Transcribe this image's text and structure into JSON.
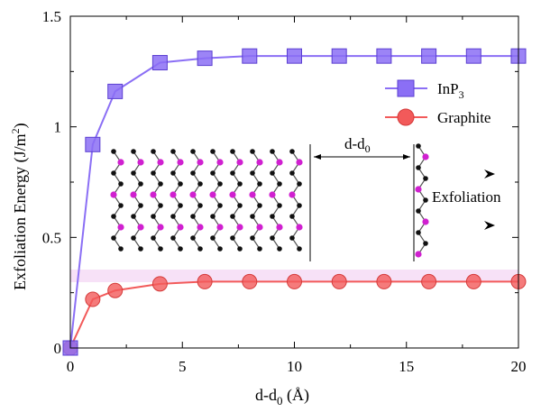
{
  "chart_data": {
    "type": "line",
    "xlabel": "d-d",
    "xlabel_sub": "0",
    "xlabel_unit": " (Å)",
    "ylabel": "Exfoliation Energy (J/m",
    "ylabel_sup": "2",
    "ylabel_end": ")",
    "xlim": [
      0,
      20
    ],
    "ylim": [
      0,
      1.5
    ],
    "x_ticks": [
      0,
      5,
      10,
      15,
      20
    ],
    "x_tick_labels": [
      "0",
      "5",
      "10",
      "15",
      "20"
    ],
    "y_ticks": [
      0,
      0.5,
      1,
      1.5
    ],
    "y_tick_labels": [
      "0",
      "0.5",
      "1",
      "1.5"
    ],
    "grid": false,
    "legend_position": "upper-right",
    "series": [
      {
        "name": "InP",
        "name_sub": "3",
        "marker": "square",
        "color": "#8b6ff5",
        "x": [
          0,
          1,
          2,
          4,
          6,
          8,
          10,
          12,
          14,
          16,
          18,
          20
        ],
        "y": [
          0,
          0.92,
          1.16,
          1.29,
          1.31,
          1.32,
          1.32,
          1.32,
          1.32,
          1.32,
          1.32,
          1.32
        ]
      },
      {
        "name": "Graphite",
        "name_sub": "",
        "marker": "circle",
        "color": "#f25a5a",
        "x": [
          0,
          1,
          2,
          4,
          6,
          8,
          10,
          12,
          14,
          16,
          18,
          20
        ],
        "y": [
          0,
          0.22,
          0.26,
          0.29,
          0.3,
          0.3,
          0.3,
          0.3,
          0.3,
          0.3,
          0.3,
          0.3
        ]
      }
    ],
    "annotations": {
      "separation_label": "d-d",
      "separation_sub": "0",
      "exfoliation_label": "Exfoliation"
    }
  }
}
